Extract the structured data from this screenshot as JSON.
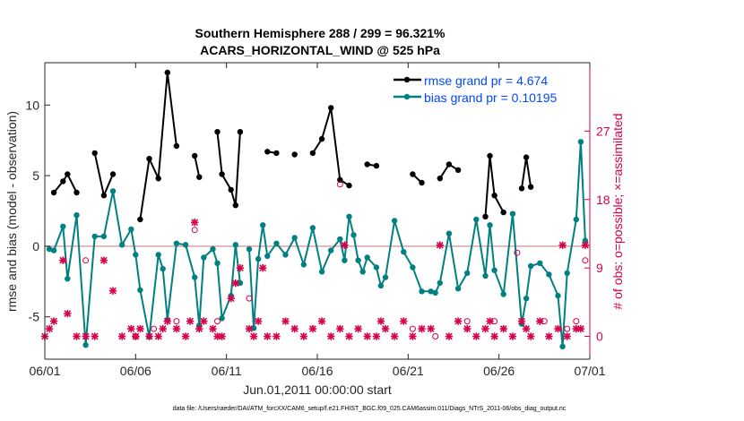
{
  "chart_data": {
    "type": "line",
    "title": "Southern Hemisphere 288 / 299 = 96.321%",
    "subtitle": "ACARS_HORIZONTAL_WIND @ 525 hPa",
    "xlabel": "Jun.01,2011 00:00:00 start",
    "ylabel": "rmse and bias (model - observation)",
    "y2label": "# of obs: o=possible; ×=assimilated",
    "footer": "data file: /Users/raeder/DAI/ATM_forcXX/CAM6_setup/f.e21.FHIST_BGC.f09_025.CAM6assim.011/Diags_NTrS_2011-06/obs_diag_output.nc",
    "xlim": [
      0,
      30
    ],
    "ylim": [
      -8,
      13
    ],
    "y2lim": [
      -3,
      36
    ],
    "grid": false,
    "legend_position": "top-right",
    "x_ticks": [
      {
        "v": 0,
        "label": "06/01"
      },
      {
        "v": 5,
        "label": "06/06"
      },
      {
        "v": 10,
        "label": "06/11"
      },
      {
        "v": 15,
        "label": "06/16"
      },
      {
        "v": 20,
        "label": "06/21"
      },
      {
        "v": 25,
        "label": "06/26"
      },
      {
        "v": 30,
        "label": "07/01"
      }
    ],
    "y_ticks": [
      {
        "v": 10,
        "label": "10"
      },
      {
        "v": 5,
        "label": "5"
      },
      {
        "v": 0,
        "label": "0"
      },
      {
        "v": -5,
        "label": "-5"
      }
    ],
    "y2_ticks": [
      {
        "v": 27,
        "label": "27"
      },
      {
        "v": 18,
        "label": "18"
      },
      {
        "v": 9,
        "label": "9"
      },
      {
        "v": 0,
        "label": "0"
      }
    ],
    "zero_line": 0,
    "series": [
      {
        "name": "rmse grand pr = 4.674",
        "color": "#000000",
        "axis": "left",
        "x": [
          0.25,
          0.5,
          1.0,
          1.25,
          1.75,
          2.25,
          2.75,
          3.25,
          3.75,
          4.25,
          4.75,
          5.25,
          5.75,
          6.25,
          6.75,
          7.25,
          7.75,
          8.25,
          8.5,
          8.75,
          9.25,
          9.5,
          9.75,
          10.25,
          10.5,
          10.75,
          11.25,
          11.5,
          11.75,
          12.0,
          12.25,
          12.75,
          13.25,
          13.75,
          14.25,
          14.75,
          15.25,
          15.75,
          16.25,
          16.75,
          17.0,
          17.25,
          17.5,
          17.75,
          18.25,
          18.5,
          19.25,
          19.75,
          20.25,
          20.75,
          21.25,
          21.75,
          22.25,
          22.75,
          23.25,
          23.75,
          24.25,
          24.5,
          24.75,
          25.25,
          25.75,
          26.25,
          26.5,
          26.75,
          27.25,
          27.75,
          28.25,
          28.75,
          29.25,
          29.75
        ],
        "y": [
          null,
          3.8,
          4.6,
          5.1,
          3.8,
          null,
          6.6,
          3.6,
          5.1,
          null,
          null,
          1.9,
          6.2,
          4.8,
          12.3,
          7.1,
          null,
          6.4,
          4.9,
          null,
          null,
          8.1,
          5.1,
          4.0,
          2.9,
          8.1,
          null,
          null,
          null,
          null,
          6.7,
          6.6,
          null,
          6.5,
          null,
          6.6,
          7.6,
          9.8,
          4.7,
          4.3,
          null,
          null,
          null,
          5.8,
          5.7,
          null,
          null,
          null,
          5.1,
          4.5,
          null,
          4.8,
          5.8,
          5.4,
          null,
          null,
          2.1,
          6.4,
          3.6,
          2.4,
          null,
          4.1,
          6.3,
          4.2,
          null,
          null,
          null,
          null,
          null,
          null
        ],
        "segments_note": "gaps marked with null"
      },
      {
        "name": "bias grand pr = 0.10195",
        "color": "#008080",
        "axis": "left",
        "x": [
          0.25,
          0.5,
          1.0,
          1.25,
          1.75,
          2.25,
          2.75,
          3.25,
          3.75,
          4.25,
          4.75,
          5.0,
          5.25,
          5.75,
          6.25,
          6.5,
          6.75,
          7.25,
          7.75,
          8.25,
          8.5,
          8.75,
          9.25,
          9.5,
          9.75,
          10.25,
          10.5,
          10.75,
          11.0,
          11.25,
          11.5,
          11.75,
          12.0,
          12.25,
          12.75,
          13.25,
          13.75,
          14.25,
          14.75,
          15.25,
          15.75,
          16.25,
          16.5,
          16.75,
          17.0,
          17.25,
          17.5,
          17.75,
          18.25,
          18.5,
          18.75,
          19.25,
          19.75,
          20.25,
          20.75,
          21.25,
          21.5,
          21.75,
          22.25,
          22.75,
          23.25,
          23.75,
          24.25,
          24.5,
          24.75,
          25.25,
          25.75,
          26.25,
          26.5,
          26.75,
          27.25,
          27.75,
          28.25,
          28.5,
          28.75,
          29.25,
          29.5,
          29.75
        ],
        "y": [
          -0.2,
          -0.3,
          1.4,
          -2.3,
          2.2,
          -7.0,
          0.7,
          0.7,
          3.9,
          0.1,
          1.2,
          -0.6,
          -3.1,
          -6.4,
          -0.6,
          -1.6,
          -5.2,
          0.2,
          0.1,
          -2.2,
          -5.6,
          -0.8,
          -0.2,
          -1.2,
          -5.1,
          -3.5,
          0.1,
          -2.6,
          null,
          -0.2,
          -5.8,
          -0.9,
          1.5,
          -0.7,
          0.2,
          -0.6,
          0.6,
          -1.3,
          1.3,
          -1.8,
          -0.3,
          0.5,
          -1.0,
          2.1,
          0.8,
          -1.0,
          -1.8,
          -0.8,
          -1.5,
          -2.8,
          -2.2,
          1.8,
          -0.4,
          -1.5,
          -3.2,
          -3.2,
          -3.3,
          -2.6,
          0.9,
          -3.0,
          -1.9,
          1.9,
          -2.1,
          1.5,
          -1.7,
          -3.4,
          2.3,
          -5.5,
          -3.7,
          -1.4,
          -1.2,
          -2.0,
          -3.5,
          -7.1,
          -1.9,
          1.9,
          7.4,
          0.4
        ]
      },
      {
        "name": "possible",
        "color": "#d6004a",
        "axis": "right",
        "marker": "o",
        "x": [
          2.25,
          5.0,
          6.0,
          7.25,
          8.25,
          9.5,
          11.25,
          16.25,
          20.25,
          21.5,
          23.25,
          24.75,
          26.0,
          27.5,
          28.75,
          29.25,
          29.75
        ],
        "y": [
          10,
          0,
          1,
          2,
          14,
          2,
          5,
          20,
          1,
          0,
          2,
          2,
          11,
          2,
          1,
          2,
          10
        ]
      },
      {
        "name": "assimilated",
        "color": "#d6004a",
        "axis": "right",
        "marker": "x",
        "x": [
          0.0,
          0.25,
          0.5,
          1.0,
          1.25,
          1.75,
          2.25,
          2.75,
          3.25,
          3.75,
          4.25,
          4.75,
          5.0,
          5.25,
          5.75,
          6.25,
          6.5,
          6.75,
          7.25,
          7.75,
          8.0,
          8.25,
          8.5,
          8.75,
          9.25,
          9.5,
          9.75,
          10.25,
          10.5,
          10.75,
          11.25,
          11.5,
          11.75,
          12.0,
          12.25,
          12.75,
          13.25,
          13.75,
          14.25,
          14.75,
          15.25,
          15.75,
          16.25,
          16.5,
          16.75,
          17.25,
          17.75,
          18.25,
          18.5,
          18.75,
          19.25,
          19.75,
          20.25,
          20.75,
          21.25,
          21.75,
          22.25,
          22.75,
          23.25,
          23.75,
          24.25,
          24.5,
          24.75,
          25.25,
          25.75,
          26.25,
          26.5,
          26.75,
          27.25,
          27.75,
          28.25,
          28.5,
          28.75,
          29.25,
          29.5,
          29.75
        ],
        "y": [
          0,
          1,
          2,
          10,
          3,
          0,
          0,
          0,
          10,
          6,
          0,
          1,
          0,
          1,
          0,
          0,
          1,
          2,
          1,
          0,
          2,
          15,
          1,
          2,
          1,
          0,
          0,
          5,
          7,
          9,
          1,
          0,
          2,
          9,
          0,
          0,
          2,
          1,
          0,
          1,
          2,
          0,
          1,
          12,
          0,
          1,
          0,
          0,
          2,
          1,
          0,
          2,
          0,
          1,
          1,
          12,
          0,
          2,
          1,
          0,
          1,
          2,
          0,
          1,
          0,
          2,
          1,
          0,
          2,
          0,
          1,
          12,
          0,
          1,
          1,
          12
        ]
      }
    ]
  }
}
